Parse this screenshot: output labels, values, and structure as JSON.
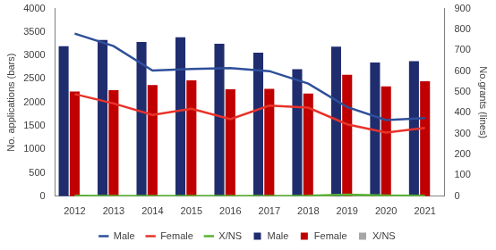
{
  "chart_data": {
    "type": "bar",
    "categories": [
      "2012",
      "2013",
      "2014",
      "2015",
      "2016",
      "2017",
      "2018",
      "2019",
      "2020",
      "2021"
    ],
    "y_label": "No. applications (bars)",
    "y2_label": "No.grants (lines)",
    "ylim": [
      0,
      4000
    ],
    "yticks": [
      0,
      500,
      1000,
      1500,
      2000,
      2500,
      3000,
      3500,
      4000
    ],
    "y2lim": [
      0,
      900
    ],
    "y2ticks": [
      0,
      100,
      200,
      300,
      400,
      500,
      600,
      700,
      800,
      900
    ],
    "grid": false,
    "legend": "bottom",
    "series": [
      {
        "name": "Male",
        "type": "bar",
        "color": "#1f2d6e",
        "values": [
          3200,
          3330,
          3290,
          3390,
          3250,
          3060,
          2710,
          3190,
          2850,
          2880
        ]
      },
      {
        "name": "Female",
        "type": "bar",
        "color": "#c00000",
        "values": [
          2230,
          2260,
          2370,
          2470,
          2280,
          2290,
          2190,
          2590,
          2340,
          2450
        ]
      },
      {
        "name": "X/NS",
        "type": "bar",
        "color": "#a6a6a6",
        "values": [
          5,
          5,
          5,
          5,
          5,
          5,
          5,
          10,
          5,
          5
        ]
      },
      {
        "name": "Male",
        "type": "line",
        "axis": "y2",
        "color": "#2f4f9a",
        "values": [
          780,
          720,
          603,
          610,
          615,
          600,
          540,
          428,
          365,
          375
        ]
      },
      {
        "name": "Female",
        "type": "line",
        "axis": "y2",
        "color": "#e8332a",
        "values": [
          490,
          445,
          390,
          420,
          370,
          435,
          425,
          345,
          305,
          328
        ]
      },
      {
        "name": "X/NS",
        "type": "line",
        "axis": "y2",
        "color": "#59b332",
        "values": [
          2,
          1,
          1,
          1,
          1,
          1,
          2,
          8,
          3,
          2
        ]
      }
    ]
  }
}
